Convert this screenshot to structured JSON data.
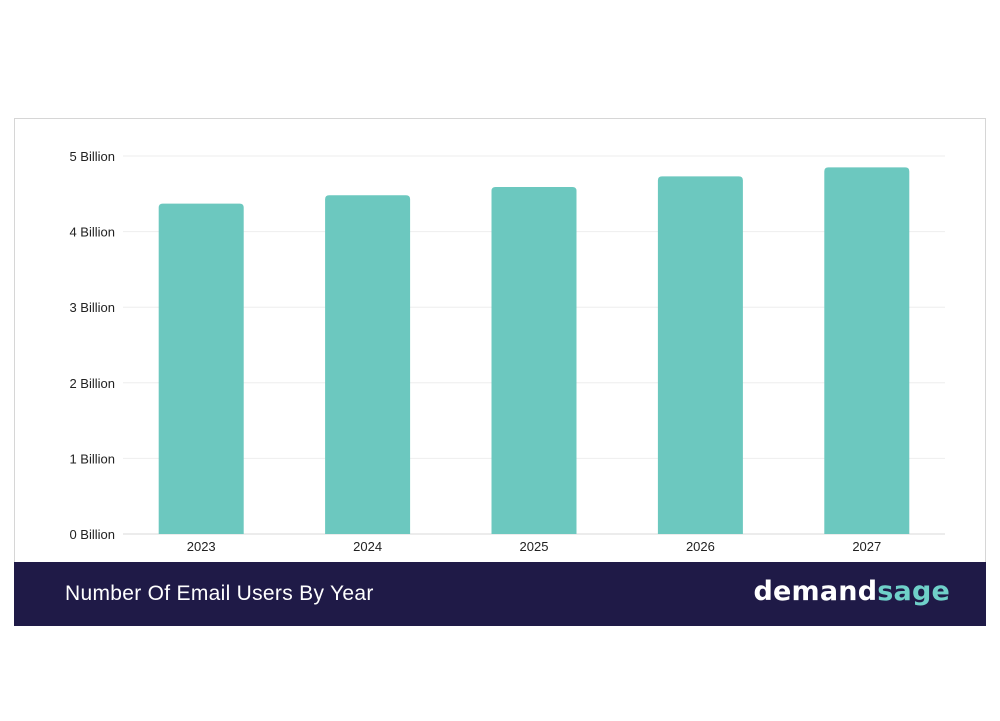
{
  "footer": {
    "title": "Number Of Email Users By Year",
    "brand_part1": "demand",
    "brand_part2": "sage"
  },
  "colors": {
    "bar": "#6cc8bf",
    "footer_bg": "#1f1a47",
    "brand_accent": "#6fd0c9",
    "grid": "#eeeeee",
    "axis_text": "#222222"
  },
  "chart_data": {
    "type": "bar",
    "title": "",
    "xlabel": "",
    "ylabel": "",
    "categories": [
      "2023",
      "2024",
      "2025",
      "2026",
      "2027"
    ],
    "values": [
      4.37,
      4.48,
      4.59,
      4.73,
      4.85
    ],
    "unit": "Billion",
    "ylim": [
      0,
      5
    ],
    "yticks": [
      {
        "value": 0,
        "label": "0 Billion"
      },
      {
        "value": 1,
        "label": "1 Billion"
      },
      {
        "value": 2,
        "label": "2 Billion"
      },
      {
        "value": 3,
        "label": "3 Billion"
      },
      {
        "value": 4,
        "label": "4 Billion"
      },
      {
        "value": 5,
        "label": "5 Billion"
      }
    ],
    "grid": true,
    "legend": "none"
  }
}
